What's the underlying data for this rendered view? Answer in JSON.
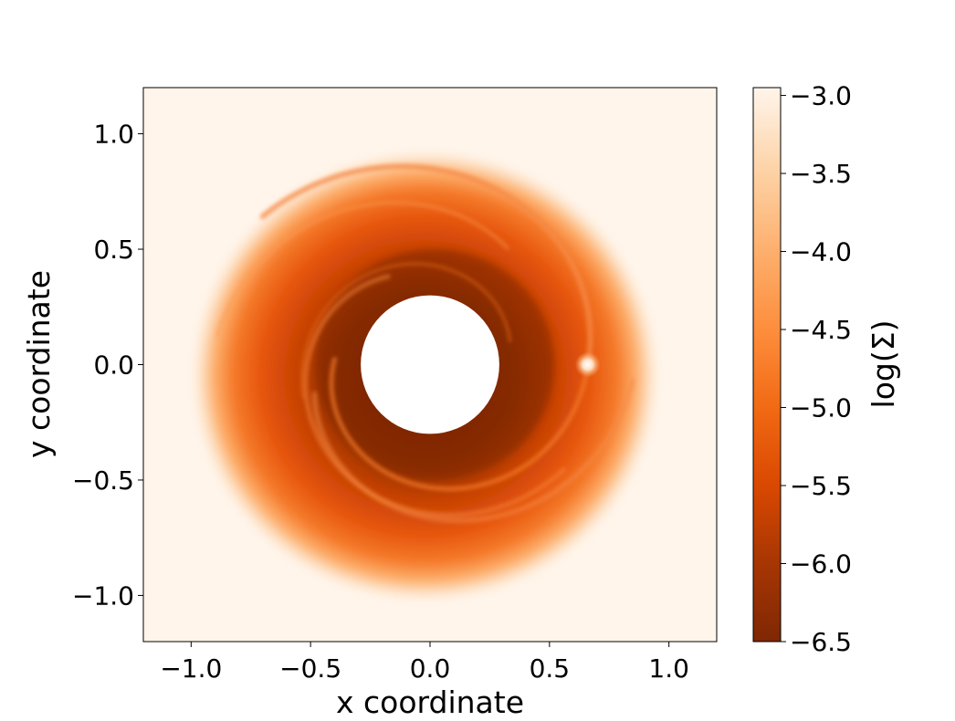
{
  "chart_data": {
    "type": "heatmap",
    "xlabel": "x coordinate",
    "ylabel": "y coordinate",
    "xlim": [
      -1.2,
      1.2
    ],
    "ylim": [
      -1.2,
      1.2
    ],
    "xticks": [
      {
        "value": -1.0,
        "label": "−1.0"
      },
      {
        "value": -0.5,
        "label": "−0.5"
      },
      {
        "value": 0.0,
        "label": "0.0"
      },
      {
        "value": 0.5,
        "label": "0.5"
      },
      {
        "value": 1.0,
        "label": "1.0"
      }
    ],
    "yticks": [
      {
        "value": -1.0,
        "label": "−1.0"
      },
      {
        "value": -0.5,
        "label": "−0.5"
      },
      {
        "value": 0.0,
        "label": "0.0"
      },
      {
        "value": 0.5,
        "label": "0.5"
      },
      {
        "value": 1.0,
        "label": "1.0"
      }
    ],
    "colorbar": {
      "label": "log(Σ)",
      "range": [
        -6.5,
        -2.95
      ],
      "ticks": [
        {
          "value": -3.0,
          "label": "−3.0"
        },
        {
          "value": -3.5,
          "label": "−3.5"
        },
        {
          "value": -4.0,
          "label": "−4.0"
        },
        {
          "value": -4.5,
          "label": "−4.5"
        },
        {
          "value": -5.0,
          "label": "−5.0"
        },
        {
          "value": -5.5,
          "label": "−5.5"
        },
        {
          "value": -6.0,
          "label": "−6.0"
        },
        {
          "value": -6.5,
          "label": "−6.5"
        }
      ],
      "colormap": "Oranges (reversed)"
    },
    "inner_hole_radius": 0.295,
    "planet": {
      "x": 0.66,
      "y": 0.0
    },
    "grid": false,
    "colors": {
      "low": "#7f2704",
      "mid": "#e6550d",
      "high": "#fff5eb",
      "hole": "#ffffff"
    }
  }
}
